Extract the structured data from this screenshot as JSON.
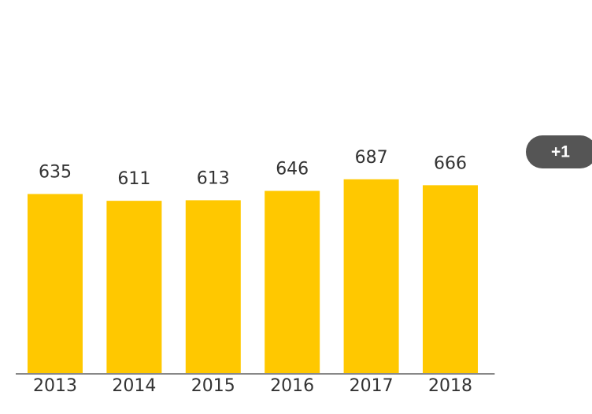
{
  "chart_data": {
    "type": "bar",
    "categories": [
      "2013",
      "2014",
      "2015",
      "2016",
      "2017",
      "2018"
    ],
    "values": [
      635,
      611,
      613,
      646,
      687,
      666
    ],
    "color": "#ffc800",
    "ylim": [
      0,
      1320
    ],
    "annotation": "+1"
  }
}
